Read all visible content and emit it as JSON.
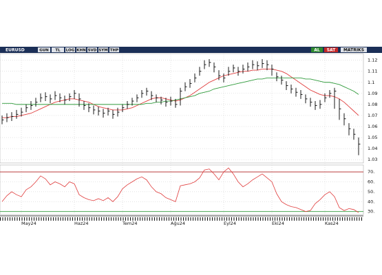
{
  "toolbar": {
    "symbol": "EURUSD",
    "buttons": [
      "GUN",
      "TL",
      "LOG",
      "KHN",
      "SVD",
      "SYM",
      "THP"
    ],
    "buy": "AL",
    "sell": "SAT",
    "brand": "MATRIKS"
  },
  "chart_data": [
    {
      "type": "ohlc",
      "categories": [
        null,
        null,
        null,
        null,
        "May24",
        null,
        null,
        null,
        null,
        null,
        null,
        null,
        null,
        null,
        null,
        "Haz24",
        null,
        null,
        null,
        null,
        null,
        null,
        null,
        null,
        null,
        "Tem24",
        null,
        null,
        null,
        null,
        null,
        null,
        null,
        null,
        null,
        "Ağu24",
        null,
        null,
        null,
        null,
        null,
        null,
        null,
        null,
        null,
        null,
        "Eyl24",
        null,
        null,
        null,
        null,
        null,
        null,
        null,
        null,
        null,
        "Eki24",
        null,
        null,
        null,
        null,
        null,
        null,
        null,
        null,
        null,
        null,
        "Kas24",
        null,
        null,
        null,
        null,
        null,
        null,
        null
      ],
      "high": [
        1.07,
        1.072,
        1.073,
        1.075,
        1.077,
        1.08,
        1.083,
        1.086,
        1.09,
        1.091,
        1.089,
        1.092,
        1.09,
        1.088,
        1.09,
        1.093,
        1.09,
        1.083,
        1.081,
        1.079,
        1.078,
        1.076,
        1.077,
        1.075,
        1.077,
        1.08,
        1.083,
        1.086,
        1.089,
        1.093,
        1.095,
        1.092,
        1.089,
        1.087,
        1.086,
        1.087,
        1.085,
        1.095,
        1.1,
        1.103,
        1.108,
        1.114,
        1.12,
        1.121,
        1.118,
        1.111,
        1.108,
        1.114,
        1.116,
        1.114,
        1.116,
        1.118,
        1.12,
        1.119,
        1.121,
        1.12,
        1.116,
        1.109,
        1.106,
        1.101,
        1.098,
        1.095,
        1.093,
        1.089,
        1.086,
        1.083,
        1.084,
        1.09,
        1.093,
        1.095,
        1.085,
        1.072,
        1.063,
        1.058,
        1.05
      ],
      "low": [
        1.062,
        1.064,
        1.065,
        1.067,
        1.069,
        1.073,
        1.075,
        1.078,
        1.082,
        1.083,
        1.081,
        1.084,
        1.082,
        1.08,
        1.083,
        1.085,
        1.078,
        1.075,
        1.073,
        1.071,
        1.07,
        1.068,
        1.07,
        1.067,
        1.069,
        1.073,
        1.076,
        1.079,
        1.082,
        1.086,
        1.088,
        1.084,
        1.082,
        1.08,
        1.078,
        1.079,
        1.077,
        1.079,
        1.092,
        1.095,
        1.1,
        1.106,
        1.112,
        1.114,
        1.109,
        1.102,
        1.1,
        1.106,
        1.109,
        1.106,
        1.108,
        1.11,
        1.112,
        1.111,
        1.113,
        1.111,
        1.106,
        1.101,
        1.098,
        1.093,
        1.09,
        1.087,
        1.085,
        1.081,
        1.078,
        1.075,
        1.076,
        1.082,
        1.086,
        1.076,
        1.066,
        1.061,
        1.052,
        1.048,
        1.034
      ],
      "close": [
        1.066,
        1.068,
        1.069,
        1.071,
        1.073,
        1.077,
        1.079,
        1.082,
        1.086,
        1.087,
        1.085,
        1.088,
        1.086,
        1.084,
        1.087,
        1.09,
        1.085,
        1.079,
        1.077,
        1.075,
        1.074,
        1.072,
        1.074,
        1.071,
        1.073,
        1.077,
        1.08,
        1.083,
        1.086,
        1.09,
        1.092,
        1.088,
        1.086,
        1.084,
        1.082,
        1.083,
        1.08,
        1.092,
        1.096,
        1.099,
        1.104,
        1.11,
        1.116,
        1.118,
        1.114,
        1.106,
        1.104,
        1.11,
        1.113,
        1.11,
        1.112,
        1.114,
        1.116,
        1.115,
        1.117,
        1.116,
        1.112,
        1.105,
        1.102,
        1.097,
        1.094,
        1.091,
        1.089,
        1.085,
        1.082,
        1.079,
        1.08,
        1.086,
        1.09,
        1.092,
        1.076,
        1.067,
        1.058,
        1.053,
        1.044
      ],
      "color": "#000000",
      "overlays": [
        {
          "color": "#e03c3c",
          "values": [
            1.068,
            1.068,
            1.069,
            1.069,
            1.07,
            1.071,
            1.072,
            1.074,
            1.076,
            1.078,
            1.08,
            1.082,
            1.083,
            1.084,
            1.085,
            1.085,
            1.084,
            1.083,
            1.082,
            1.08,
            1.078,
            1.077,
            1.076,
            1.075,
            1.075,
            1.075,
            1.076,
            1.077,
            1.079,
            1.081,
            1.083,
            1.085,
            1.086,
            1.086,
            1.085,
            1.084,
            1.083,
            1.084,
            1.086,
            1.088,
            1.091,
            1.094,
            1.097,
            1.1,
            1.102,
            1.104,
            1.106,
            1.107,
            1.108,
            1.109,
            1.11,
            1.11,
            1.111,
            1.111,
            1.112,
            1.112,
            1.112,
            1.111,
            1.11,
            1.108,
            1.105,
            1.102,
            1.099,
            1.096,
            1.093,
            1.091,
            1.089,
            1.088,
            1.088,
            1.087,
            1.085,
            1.082,
            1.078,
            1.074,
            1.07
          ]
        },
        {
          "color": "#2e9a3a",
          "values": [
            1.081,
            1.081,
            1.081,
            1.08,
            1.08,
            1.08,
            1.08,
            1.08,
            1.08,
            1.08,
            1.08,
            1.08,
            1.08,
            1.08,
            1.08,
            1.08,
            1.08,
            1.08,
            1.08,
            1.08,
            1.08,
            1.08,
            1.08,
            1.08,
            1.08,
            1.08,
            1.08,
            1.08,
            1.08,
            1.08,
            1.081,
            1.081,
            1.082,
            1.082,
            1.083,
            1.083,
            1.084,
            1.085,
            1.086,
            1.087,
            1.088,
            1.09,
            1.091,
            1.092,
            1.094,
            1.095,
            1.096,
            1.097,
            1.098,
            1.099,
            1.1,
            1.101,
            1.102,
            1.103,
            1.103,
            1.104,
            1.104,
            1.104,
            1.104,
            1.104,
            1.104,
            1.104,
            1.104,
            1.103,
            1.103,
            1.102,
            1.101,
            1.1,
            1.1,
            1.099,
            1.098,
            1.096,
            1.094,
            1.092,
            1.089
          ]
        }
      ],
      "ylim": [
        1.027,
        1.126
      ],
      "yticks": [
        1.12,
        1.11,
        1.1,
        1.09,
        1.08,
        1.07,
        1.06,
        1.05,
        1.04,
        1.03
      ],
      "grid": true
    },
    {
      "type": "line",
      "values": [
        40,
        46,
        50,
        47,
        45,
        52,
        55,
        60,
        66,
        63,
        57,
        60,
        58,
        55,
        60,
        58,
        47,
        44,
        42,
        41,
        43,
        41,
        44,
        40,
        45,
        53,
        57,
        60,
        63,
        65,
        62,
        55,
        50,
        48,
        44,
        42,
        40,
        56,
        57,
        58,
        60,
        64,
        72,
        73,
        68,
        62,
        70,
        74,
        68,
        60,
        55,
        58,
        62,
        65,
        68,
        64,
        60,
        48,
        40,
        37,
        35,
        34,
        32,
        30,
        31,
        38,
        42,
        47,
        50,
        45,
        34,
        31,
        33,
        32,
        29
      ],
      "color": "#e03c3c",
      "ylim": [
        27,
        77
      ],
      "yticks": [
        {
          "value": 70,
          "label": "70."
        },
        {
          "value": 60,
          "label": "60."
        },
        {
          "value": 50,
          "label": "50."
        },
        {
          "value": 40,
          "label": "40."
        },
        {
          "value": 30,
          "label": "30."
        }
      ],
      "levels": [
        {
          "value": 70,
          "color": "#b02020"
        },
        {
          "value": 30,
          "color": "#2e9a3a"
        }
      ],
      "grid": true
    }
  ]
}
